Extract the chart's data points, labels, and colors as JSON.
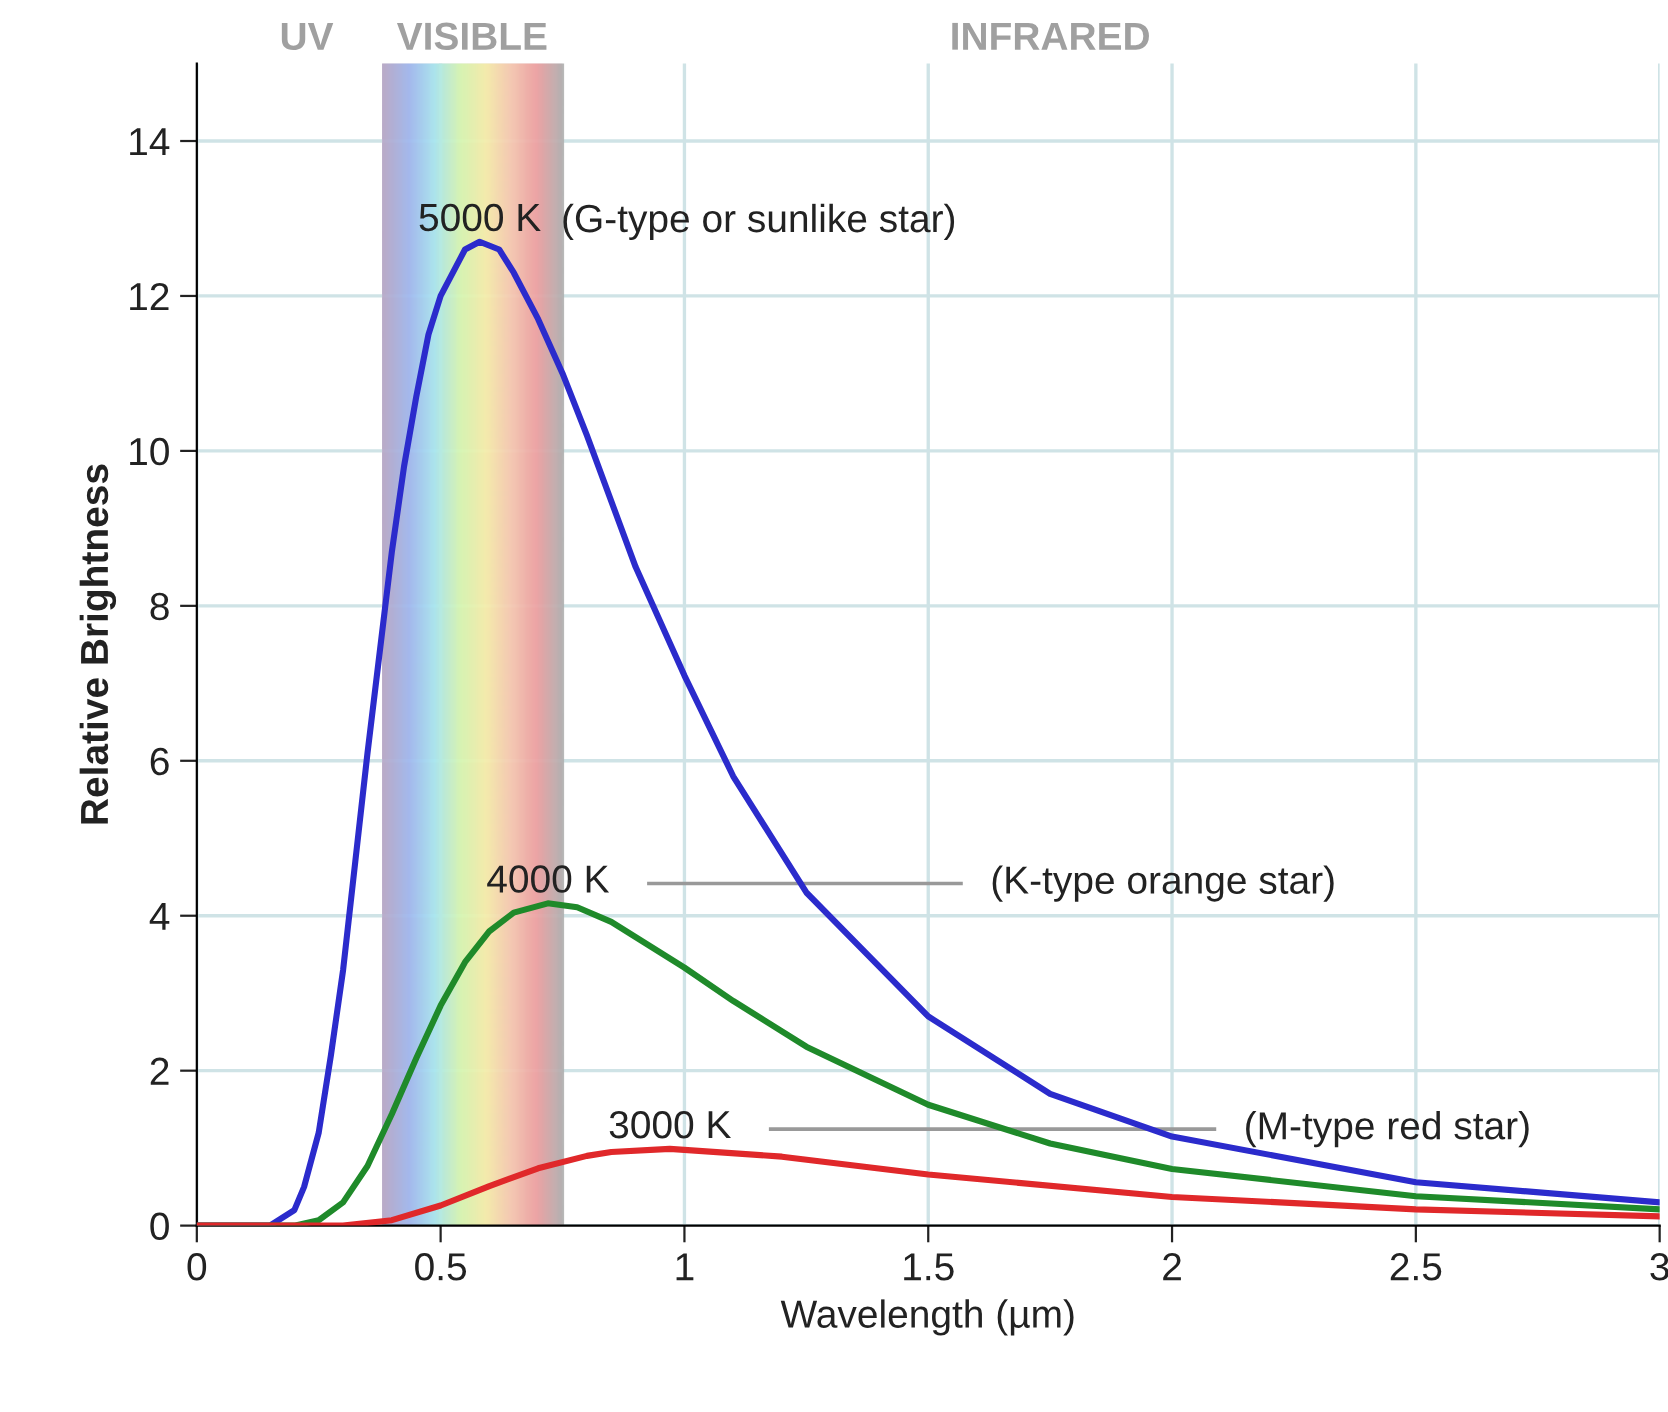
{
  "chart_data": {
    "type": "line",
    "xlabel": "Wavelength (µm)",
    "ylabel": "Relative Brightness",
    "xlim": [
      0,
      3
    ],
    "ylim": [
      0,
      15
    ],
    "xticks": [
      0,
      0.5,
      1,
      1.5,
      2,
      2.5,
      3
    ],
    "yticks": [
      0,
      2,
      4,
      6,
      8,
      10,
      12,
      14
    ],
    "grid": true,
    "legend": false,
    "marker": "none",
    "line_style": "solid",
    "series": [
      {
        "name": "5000 K",
        "color": "#2b2bcc",
        "x": [
          0,
          0.15,
          0.2,
          0.22,
          0.25,
          0.275,
          0.3,
          0.325,
          0.35,
          0.375,
          0.4,
          0.425,
          0.45,
          0.475,
          0.5,
          0.55,
          0.58,
          0.62,
          0.65,
          0.7,
          0.75,
          0.8,
          0.9,
          1.0,
          1.1,
          1.25,
          1.5,
          1.75,
          2,
          2.5,
          3
        ],
        "values": [
          0,
          0,
          0.2,
          0.5,
          1.2,
          2.2,
          3.3,
          4.7,
          6.1,
          7.4,
          8.7,
          9.8,
          10.7,
          11.5,
          12.0,
          12.6,
          12.7,
          12.6,
          12.3,
          11.7,
          11.0,
          10.2,
          8.5,
          7.1,
          5.8,
          4.3,
          2.7,
          1.7,
          1.15,
          0.56,
          0.3
        ]
      },
      {
        "name": "4000 K",
        "color": "#1f8a2a",
        "x": [
          0,
          0.2,
          0.25,
          0.3,
          0.35,
          0.4,
          0.45,
          0.5,
          0.55,
          0.6,
          0.65,
          0.72,
          0.78,
          0.85,
          1.0,
          1.1,
          1.25,
          1.5,
          1.75,
          2,
          2.5,
          3
        ],
        "values": [
          0,
          0,
          0.07,
          0.3,
          0.77,
          1.44,
          2.16,
          2.84,
          3.4,
          3.8,
          4.04,
          4.16,
          4.11,
          3.92,
          3.33,
          2.9,
          2.31,
          1.56,
          1.06,
          0.73,
          0.38,
          0.21
        ]
      },
      {
        "name": "3000 K",
        "color": "#e0282a",
        "x": [
          0,
          0.3,
          0.4,
          0.5,
          0.6,
          0.7,
          0.8,
          0.85,
          0.97,
          1.2,
          1.5,
          2,
          2.5,
          3
        ],
        "values": [
          0,
          0,
          0.07,
          0.26,
          0.51,
          0.74,
          0.9,
          0.95,
          0.99,
          0.89,
          0.66,
          0.37,
          0.21,
          0.12
        ]
      }
    ],
    "bands": [
      {
        "axis": "x",
        "from": 0.38,
        "to": 0.75,
        "label": "VISIBLE",
        "color": "#c8c0c8"
      }
    ],
    "annotations": [
      "(G-type or sunlike star)",
      "(K-type orange star)",
      "(M-type red star)",
      "UV",
      "INFRARED"
    ]
  }
}
